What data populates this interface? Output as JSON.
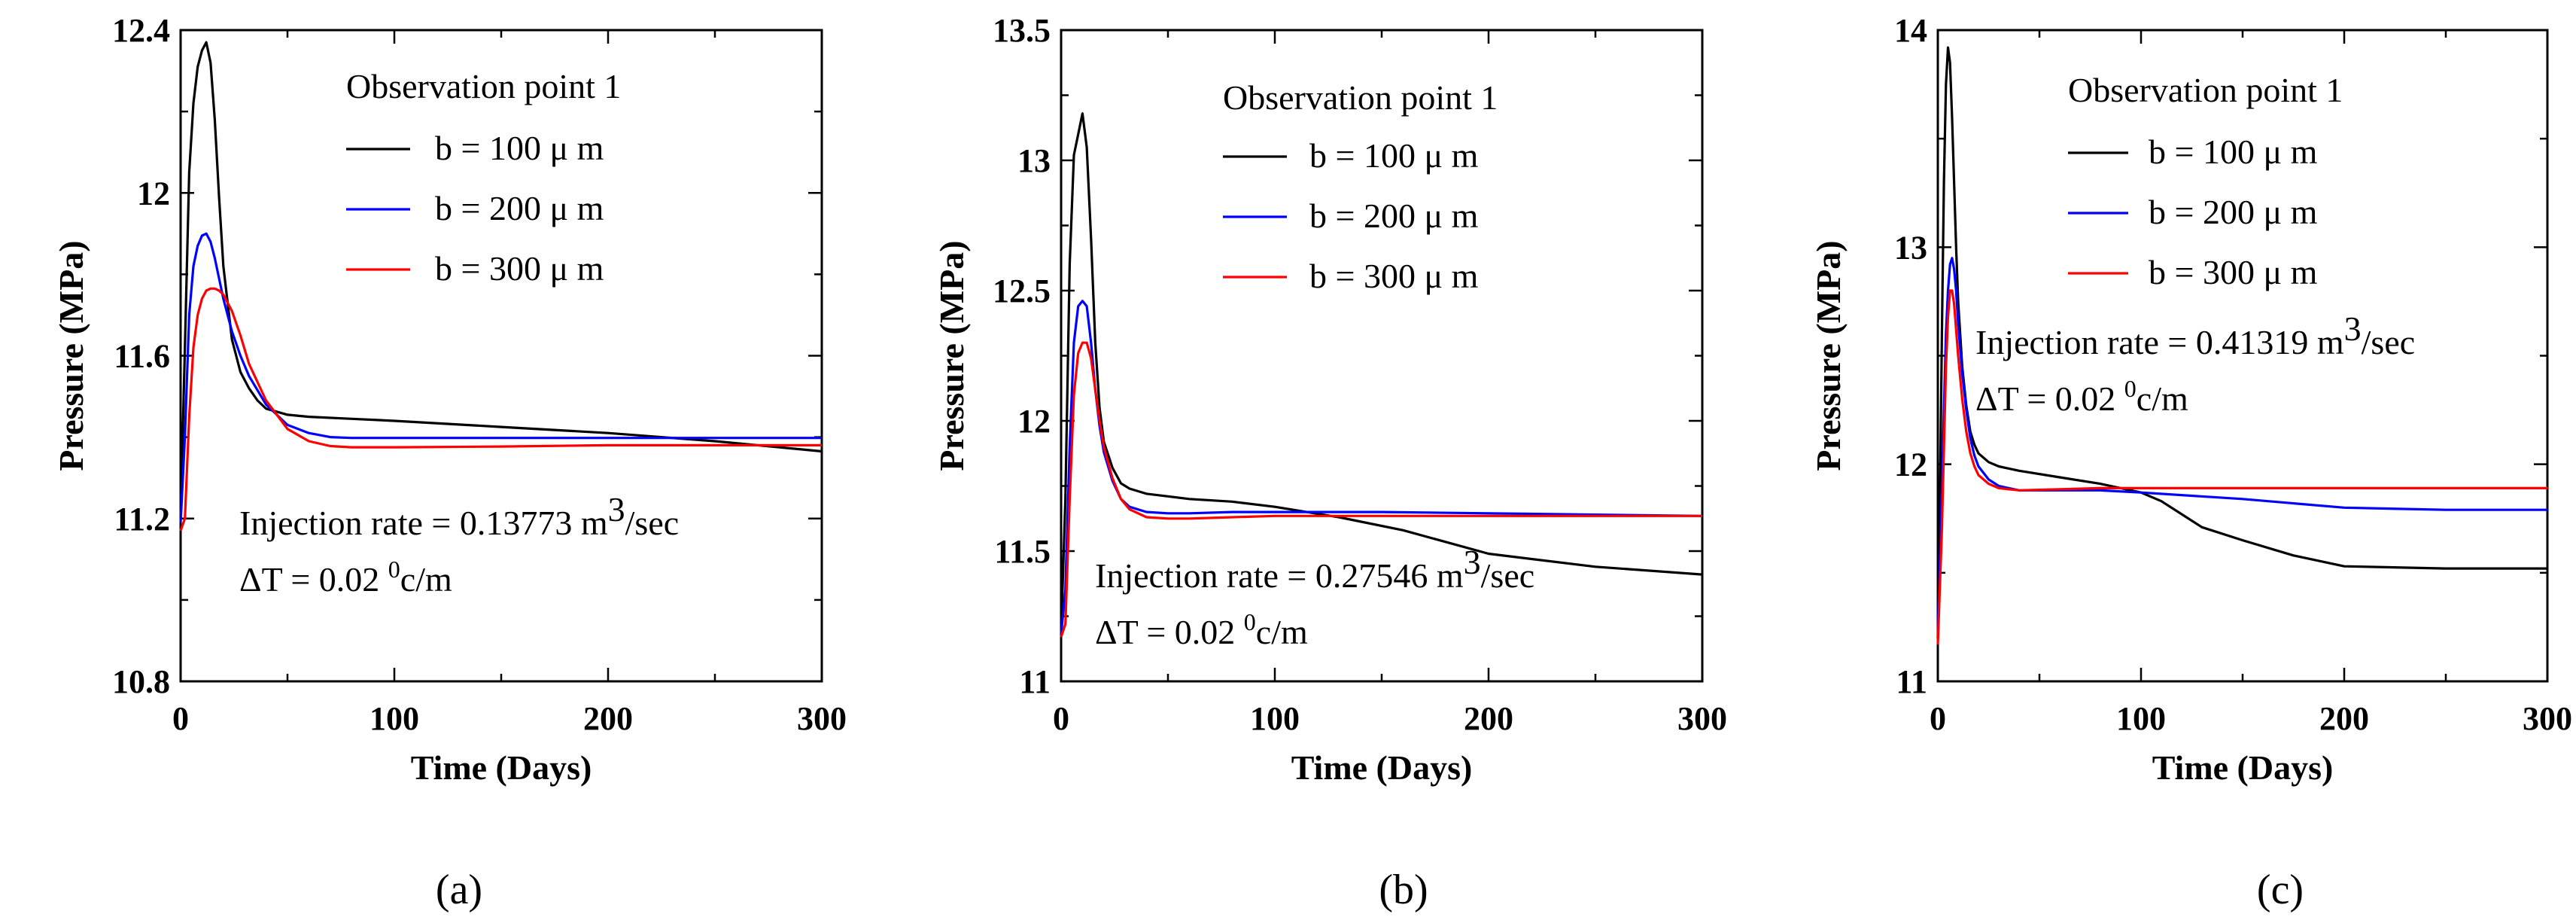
{
  "chart_data": [
    {
      "type": "line",
      "panel_label": "(a)",
      "xlabel": "Time (Days)",
      "ylabel": "Pressure (MPa)",
      "xlim": [
        0,
        300
      ],
      "ylim": [
        10.8,
        12.4
      ],
      "xticks": [
        "0",
        "100",
        "200",
        "300"
      ],
      "yticks": [
        "10.8",
        "11.2",
        "11.6",
        "12",
        "12.4"
      ],
      "grid": false,
      "legend_title": "Observation point 1",
      "legend_position": "top-center",
      "annotation_lines": [
        {
          "main": "Injection rate = 0.13773 m",
          "sup": "3",
          "tail": "/sec"
        },
        {
          "main": "ΔT = 0.02 ",
          "sup": "0",
          "tail": "c/m"
        }
      ],
      "series": [
        {
          "name": "b = 100 μ m",
          "color": "#000000",
          "x": [
            0,
            2,
            4,
            6,
            8,
            10,
            12,
            14,
            16,
            18,
            20,
            24,
            28,
            32,
            36,
            40,
            50,
            60,
            80,
            100,
            150,
            200,
            250,
            300
          ],
          "y": [
            11.2,
            11.62,
            12.05,
            12.22,
            12.31,
            12.35,
            12.37,
            12.32,
            12.18,
            11.99,
            11.82,
            11.64,
            11.56,
            11.52,
            11.49,
            11.47,
            11.455,
            11.45,
            11.445,
            11.44,
            11.425,
            11.41,
            11.39,
            11.365
          ]
        },
        {
          "name": "b = 200 μ m",
          "color": "#0000ff",
          "x": [
            0,
            2,
            4,
            6,
            8,
            10,
            12,
            14,
            16,
            20,
            24,
            28,
            32,
            40,
            50,
            60,
            70,
            80,
            100,
            150,
            200,
            250,
            300
          ],
          "y": [
            11.19,
            11.4,
            11.7,
            11.82,
            11.87,
            11.895,
            11.9,
            11.88,
            11.84,
            11.74,
            11.66,
            11.6,
            11.55,
            11.48,
            11.43,
            11.41,
            11.4,
            11.398,
            11.398,
            11.398,
            11.398,
            11.398,
            11.398
          ]
        },
        {
          "name": "b = 300 μ m",
          "color": "#ff0000",
          "x": [
            0,
            2,
            4,
            6,
            8,
            10,
            12,
            14,
            16,
            18,
            20,
            24,
            28,
            32,
            40,
            50,
            60,
            70,
            80,
            100,
            150,
            200,
            250,
            300
          ],
          "y": [
            11.17,
            11.2,
            11.45,
            11.62,
            11.7,
            11.74,
            11.76,
            11.765,
            11.765,
            11.76,
            11.75,
            11.71,
            11.65,
            11.58,
            11.49,
            11.42,
            11.39,
            11.378,
            11.375,
            11.375,
            11.377,
            11.38,
            11.38,
            11.38
          ]
        }
      ]
    },
    {
      "type": "line",
      "panel_label": "(b)",
      "xlabel": "Time (Days)",
      "ylabel": "Pressure (MPa)",
      "xlim": [
        0,
        300
      ],
      "ylim": [
        11,
        13.5
      ],
      "xticks": [
        "0",
        "100",
        "200",
        "300"
      ],
      "yticks": [
        "11",
        "11.5",
        "12",
        "12.5",
        "13",
        "13.5"
      ],
      "grid": false,
      "legend_title": "Observation point 1",
      "legend_position": "top-center",
      "annotation_lines": [
        {
          "main": "Injection rate = 0.27546 m",
          "sup": "3",
          "tail": "/sec"
        },
        {
          "main": "ΔT = 0.02 ",
          "sup": "0",
          "tail": "c/m"
        }
      ],
      "series": [
        {
          "name": "b = 100 μ m",
          "color": "#000000",
          "x": [
            0,
            2,
            4,
            6,
            8,
            10,
            12,
            14,
            16,
            18,
            20,
            24,
            28,
            32,
            40,
            50,
            60,
            80,
            100,
            130,
            160,
            200,
            250,
            300
          ],
          "y": [
            11.18,
            11.7,
            12.6,
            13.02,
            13.1,
            13.18,
            13.05,
            12.7,
            12.3,
            12.05,
            11.92,
            11.82,
            11.76,
            11.74,
            11.72,
            11.71,
            11.7,
            11.69,
            11.67,
            11.63,
            11.58,
            11.49,
            11.44,
            11.41
          ]
        },
        {
          "name": "b = 200 μ m",
          "color": "#0000ff",
          "x": [
            0,
            2,
            4,
            6,
            8,
            10,
            12,
            14,
            16,
            18,
            20,
            24,
            28,
            32,
            40,
            50,
            60,
            80,
            100,
            150,
            200,
            250,
            300
          ],
          "y": [
            11.18,
            11.35,
            11.9,
            12.3,
            12.44,
            12.46,
            12.44,
            12.3,
            12.12,
            11.98,
            11.88,
            11.77,
            11.7,
            11.67,
            11.65,
            11.645,
            11.645,
            11.65,
            11.65,
            11.65,
            11.645,
            11.64,
            11.635
          ]
        },
        {
          "name": "b = 300 μ m",
          "color": "#ff0000",
          "x": [
            0,
            2,
            4,
            6,
            8,
            10,
            12,
            14,
            16,
            18,
            20,
            24,
            28,
            32,
            40,
            50,
            60,
            80,
            100,
            150,
            200,
            250,
            300
          ],
          "y": [
            11.17,
            11.22,
            11.7,
            12.1,
            12.26,
            12.3,
            12.3,
            12.24,
            12.12,
            12.0,
            11.9,
            11.78,
            11.7,
            11.66,
            11.63,
            11.625,
            11.625,
            11.63,
            11.635,
            11.635,
            11.635,
            11.635,
            11.635
          ]
        }
      ]
    },
    {
      "type": "line",
      "panel_label": "(c)",
      "xlabel": "Time (Days)",
      "ylabel": "Pressure (MPa)",
      "xlim": [
        0,
        300
      ],
      "ylim": [
        11,
        14
      ],
      "xticks": [
        "0",
        "100",
        "200",
        "300"
      ],
      "yticks": [
        "11",
        "12",
        "13",
        "14"
      ],
      "grid": false,
      "legend_title": "Observation point 1",
      "legend_position": "top-center",
      "annotation_lines": [
        {
          "main": "Injection rate = 0.41319 m",
          "sup": "3",
          "tail": "/sec"
        },
        {
          "main": "ΔT = 0.02 ",
          "sup": "0",
          "tail": "c/m"
        }
      ],
      "series": [
        {
          "name": "b = 100 μ m",
          "color": "#000000",
          "x": [
            0,
            1,
            2,
            3,
            4,
            5,
            6,
            7,
            8,
            9,
            10,
            12,
            14,
            16,
            18,
            20,
            25,
            30,
            40,
            60,
            80,
            100,
            110,
            120,
            130,
            150,
            175,
            200,
            250,
            300
          ],
          "y": [
            11.2,
            11.8,
            12.6,
            13.3,
            13.75,
            13.92,
            13.85,
            13.6,
            13.3,
            13.0,
            12.75,
            12.45,
            12.27,
            12.15,
            12.09,
            12.05,
            12.01,
            11.99,
            11.97,
            11.94,
            11.91,
            11.87,
            11.83,
            11.77,
            11.71,
            11.65,
            11.58,
            11.53,
            11.52,
            11.52
          ]
        },
        {
          "name": "b = 200 μ m",
          "color": "#0000ff",
          "x": [
            0,
            2,
            4,
            5,
            6,
            7,
            8,
            9,
            10,
            12,
            14,
            16,
            18,
            20,
            25,
            30,
            40,
            60,
            80,
            100,
            150,
            200,
            250,
            300
          ],
          "y": [
            11.2,
            11.9,
            12.6,
            12.8,
            12.92,
            12.95,
            12.9,
            12.8,
            12.65,
            12.42,
            12.25,
            12.12,
            12.04,
            11.99,
            11.93,
            11.9,
            11.88,
            11.88,
            11.88,
            11.87,
            11.84,
            11.8,
            11.79,
            11.79
          ]
        },
        {
          "name": "b = 300 μ m",
          "color": "#ff0000",
          "x": [
            0,
            2,
            4,
            5,
            6,
            7,
            8,
            9,
            10,
            12,
            14,
            16,
            18,
            20,
            25,
            30,
            40,
            60,
            80,
            100,
            150,
            200,
            250,
            300
          ],
          "y": [
            11.17,
            11.7,
            12.45,
            12.68,
            12.8,
            12.8,
            12.74,
            12.62,
            12.5,
            12.3,
            12.15,
            12.05,
            11.99,
            11.95,
            11.91,
            11.89,
            11.88,
            11.885,
            11.89,
            11.89,
            11.89,
            11.89,
            11.89,
            11.89
          ]
        }
      ]
    }
  ]
}
